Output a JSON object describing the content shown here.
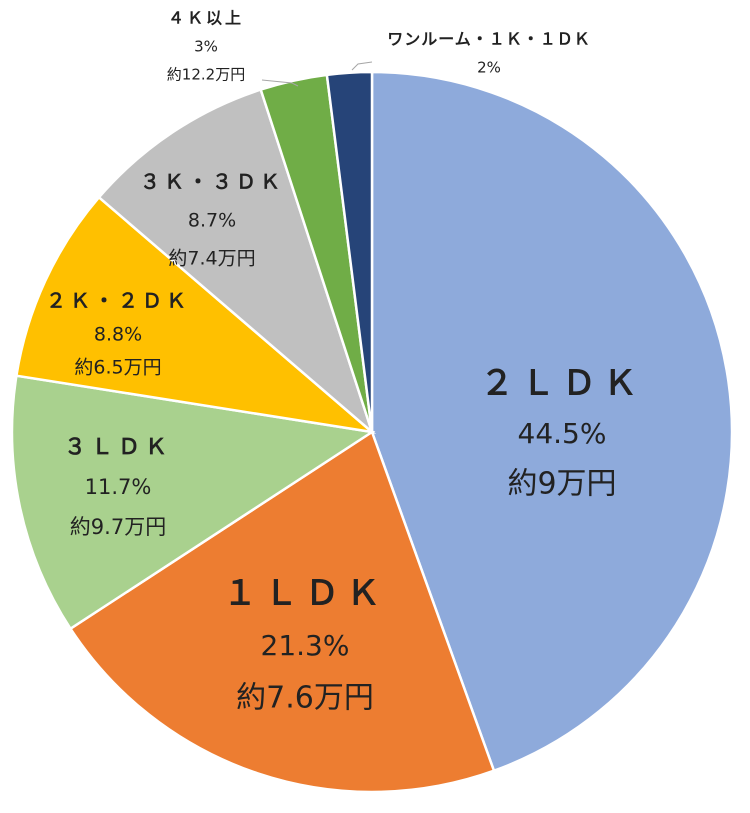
{
  "chart_data": {
    "type": "pie",
    "start_angle_deg": 0,
    "direction": "clockwise",
    "slices": [
      {
        "name": "２ＬＤＫ",
        "value": 44.5,
        "percent_label": "44.5%",
        "price_label": "約9万円",
        "color": "#8eaadb"
      },
      {
        "name": "１ＬＤＫ",
        "value": 21.3,
        "percent_label": "21.3%",
        "price_label": "約7.6万円",
        "color": "#ed7d31"
      },
      {
        "name": "３ＬＤＫ",
        "value": 11.7,
        "percent_label": "11.7%",
        "price_label": "約9.7万円",
        "color": "#a9d18e"
      },
      {
        "name": "２Ｋ・２ＤＫ",
        "value": 8.8,
        "percent_label": "8.8%",
        "price_label": "約6.5万円",
        "color": "#ffc000"
      },
      {
        "name": "３Ｋ・３ＤＫ",
        "value": 8.7,
        "percent_label": "8.7%",
        "price_label": "約7.4万円",
        "color": "#c0c0c0"
      },
      {
        "name": "４Ｋ以上",
        "value": 3,
        "percent_label": "3%",
        "price_label": "約12.2万円",
        "color": "#70ad47"
      },
      {
        "name": "ワンルーム・１Ｋ・１ＤＫ",
        "value": 2,
        "percent_label": "2%",
        "price_label": "",
        "color": "#264478"
      }
    ]
  }
}
